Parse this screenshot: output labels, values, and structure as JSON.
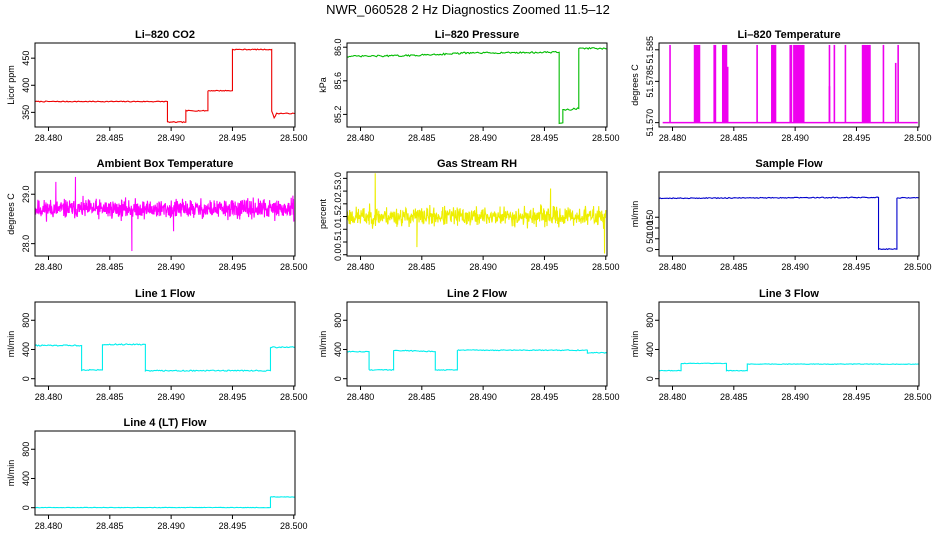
{
  "title": "NWR_060528  2 Hz Diagnostics Zoomed 11.5–12",
  "chart_data": [
    {
      "type": "line",
      "title": "Li–820 CO2",
      "ylabel": "Licor ppm",
      "color": "#ee0000",
      "xlim": [
        28.4789,
        28.5001
      ],
      "ylim": [
        323,
        478
      ],
      "xticks": [
        28.48,
        28.485,
        28.49,
        28.495,
        28.5
      ],
      "xtick_labels": [
        "28.480",
        "28.485",
        "28.490",
        "28.495",
        "28.500"
      ],
      "yticks": [
        350,
        400,
        450
      ],
      "ytick_labels": [
        "350",
        "400",
        "450"
      ],
      "noise": 0.8,
      "points": [
        [
          28.4789,
          370
        ],
        [
          28.4897,
          370
        ],
        [
          28.4897,
          332
        ],
        [
          28.4912,
          332
        ],
        [
          28.4912,
          353
        ],
        [
          28.493,
          353
        ],
        [
          28.493,
          390
        ],
        [
          28.495,
          390
        ],
        [
          28.495,
          466
        ],
        [
          28.4982,
          466
        ],
        [
          28.4982,
          352
        ],
        [
          28.4984,
          340
        ],
        [
          28.4986,
          348
        ],
        [
          28.5001,
          348
        ]
      ]
    },
    {
      "type": "line",
      "title": "Li–820 Pressure",
      "ylabel": "kPa",
      "color": "#00bb00",
      "xlim": [
        28.4789,
        28.5001
      ],
      "ylim": [
        85.05,
        86.05
      ],
      "xticks": [
        28.48,
        28.485,
        28.49,
        28.495,
        28.5
      ],
      "xtick_labels": [
        "28.480",
        "28.485",
        "28.490",
        "28.495",
        "28.500"
      ],
      "yticks": [
        85.2,
        85.6,
        86.0
      ],
      "ytick_labels": [
        "85.2",
        "85.6",
        "86.0"
      ],
      "noise": 0.01,
      "points": [
        [
          28.4789,
          85.89
        ],
        [
          28.484,
          85.9
        ],
        [
          28.4885,
          85.93
        ],
        [
          28.4962,
          85.94
        ],
        [
          28.4962,
          85.1
        ],
        [
          28.4965,
          85.1
        ],
        [
          28.4965,
          85.25
        ],
        [
          28.4978,
          85.27
        ],
        [
          28.4978,
          85.99
        ],
        [
          28.5001,
          85.98
        ]
      ]
    },
    {
      "type": "line",
      "title": "Li–820 Temperature",
      "ylabel": "degrees C",
      "color": "#ee00ee",
      "xlim": [
        28.4789,
        28.5001
      ],
      "ylim": [
        51.5691,
        51.5864
      ],
      "xticks": [
        28.48,
        28.485,
        28.49,
        28.495,
        28.5
      ],
      "xtick_labels": [
        "28.480",
        "28.485",
        "28.490",
        "28.495",
        "28.500"
      ],
      "yticks": [
        51.57,
        51.5785,
        51.585
      ],
      "ytick_labels": [
        "51.570",
        "51.5785",
        "51.585"
      ],
      "baseline": 51.57,
      "peak": 51.586,
      "spikes": [
        28.4798,
        28.4818,
        28.4819,
        28.482,
        28.4821,
        28.4822,
        28.4834,
        28.4835,
        28.4841,
        28.4842,
        28.4843,
        28.4844,
        28.4869,
        28.4881,
        28.4882,
        28.4883,
        28.4884,
        28.4896,
        28.4897,
        28.4899,
        28.49,
        28.4901,
        28.4902,
        28.4903,
        28.4904,
        28.4905,
        28.4906,
        28.4907,
        28.4928,
        28.4932,
        28.4941,
        28.4955,
        28.4956,
        28.4957,
        28.4958,
        28.4959,
        28.496,
        28.4961,
        28.4972,
        28.4984
      ],
      "partial_spikes": [
        [
          28.4845,
          51.5815
        ],
        [
          28.4928,
          51.5775
        ],
        [
          28.4982,
          51.5823
        ]
      ]
    },
    {
      "type": "line",
      "title": "Ambient Box Temperature",
      "ylabel": "degrees C",
      "color": "#ff00ff",
      "xlim": [
        28.4789,
        28.5001
      ],
      "ylim": [
        27.75,
        29.45
      ],
      "xticks": [
        28.48,
        28.485,
        28.49,
        28.495,
        28.5
      ],
      "xtick_labels": [
        "28.480",
        "28.485",
        "28.490",
        "28.495",
        "28.500"
      ],
      "yticks": [
        28.0,
        29.0
      ],
      "ytick_labels": [
        "28.0",
        "29.0"
      ],
      "noise_series": {
        "from": 28.4789,
        "to": 28.5,
        "n": 900,
        "mean": 28.7,
        "amp": 0.28,
        "seed": 11,
        "spikes": [
          [
            28.4868,
            27.85
          ],
          [
            28.4822,
            29.35
          ],
          [
            28.4806,
            29.25
          ],
          [
            28.4902,
            28.25
          ]
        ]
      }
    },
    {
      "type": "line",
      "title": "Gas Stream RH",
      "ylabel": "percent",
      "color": "#eeee00",
      "xlim": [
        28.4789,
        28.5001
      ],
      "ylim": [
        -0.05,
        3.25
      ],
      "xticks": [
        28.48,
        28.485,
        28.49,
        28.495,
        28.5
      ],
      "xtick_labels": [
        "28.480",
        "28.485",
        "28.490",
        "28.495",
        "28.500"
      ],
      "yticks": [
        0.0,
        0.5,
        1.0,
        1.5,
        2.0,
        2.5,
        3.0
      ],
      "ytick_labels": [
        "0.0",
        "0.5",
        "1.0",
        "1.5",
        "2.0",
        "2.5",
        "3.0"
      ],
      "noise_series": {
        "from": 28.4789,
        "to": 28.5,
        "n": 700,
        "mean": 1.5,
        "amp": 0.55,
        "seed": 23,
        "spikes": [
          [
            28.4812,
            3.2
          ],
          [
            28.4999,
            0.05
          ],
          [
            28.4846,
            0.3
          ],
          [
            28.4955,
            2.6
          ]
        ]
      }
    },
    {
      "type": "line",
      "title": "Sample Flow",
      "ylabel": "ml/min",
      "color": "#0000cc",
      "xlim": [
        28.4789,
        28.5001
      ],
      "ylim": [
        -30,
        360
      ],
      "xticks": [
        28.48,
        28.485,
        28.49,
        28.495,
        28.5
      ],
      "xtick_labels": [
        "28.480",
        "28.485",
        "28.490",
        "28.495",
        "28.500"
      ],
      "yticks": [
        0,
        50,
        100,
        150
      ],
      "ytick_labels": [
        "0",
        "50",
        "100",
        "150"
      ],
      "noise": 2,
      "points": [
        [
          28.4789,
          238
        ],
        [
          28.4968,
          242
        ],
        [
          28.4968,
          2
        ],
        [
          28.4983,
          2
        ],
        [
          28.4983,
          240
        ],
        [
          28.5001,
          240
        ]
      ]
    },
    {
      "type": "line",
      "title": "Line 1 Flow",
      "ylabel": "ml/min",
      "color": "#00eeee",
      "xlim": [
        28.4789,
        28.5001
      ],
      "ylim": [
        -100,
        1050
      ],
      "xticks": [
        28.48,
        28.485,
        28.49,
        28.495,
        28.5
      ],
      "xtick_labels": [
        "28.480",
        "28.485",
        "28.490",
        "28.495",
        "28.500"
      ],
      "yticks": [
        0,
        400,
        800
      ],
      "ytick_labels": [
        "0",
        "400",
        "800"
      ],
      "noise": 8,
      "points": [
        [
          28.4789,
          455
        ],
        [
          28.4827,
          455
        ],
        [
          28.4827,
          120
        ],
        [
          28.4844,
          120
        ],
        [
          28.4844,
          470
        ],
        [
          28.4879,
          470
        ],
        [
          28.4879,
          110
        ],
        [
          28.4981,
          110
        ],
        [
          28.4981,
          430
        ],
        [
          28.5001,
          430
        ]
      ]
    },
    {
      "type": "line",
      "title": "Line 2 Flow",
      "ylabel": "ml/min",
      "color": "#00eeee",
      "xlim": [
        28.4789,
        28.5001
      ],
      "ylim": [
        -100,
        1050
      ],
      "xticks": [
        28.48,
        28.485,
        28.49,
        28.495,
        28.5
      ],
      "xtick_labels": [
        "28.480",
        "28.485",
        "28.490",
        "28.495",
        "28.500"
      ],
      "yticks": [
        0,
        400,
        800
      ],
      "ytick_labels": [
        "0",
        "400",
        "800"
      ],
      "noise": 6,
      "points": [
        [
          28.4789,
          370
        ],
        [
          28.4807,
          370
        ],
        [
          28.4807,
          120
        ],
        [
          28.4827,
          120
        ],
        [
          28.4827,
          390
        ],
        [
          28.4861,
          370
        ],
        [
          28.4861,
          120
        ],
        [
          28.4879,
          120
        ],
        [
          28.4879,
          390
        ],
        [
          28.4985,
          390
        ],
        [
          28.4985,
          355
        ],
        [
          28.5001,
          355
        ]
      ]
    },
    {
      "type": "line",
      "title": "Line 3 Flow",
      "ylabel": "ml/min",
      "color": "#00eeee",
      "xlim": [
        28.4789,
        28.5001
      ],
      "ylim": [
        -100,
        1050
      ],
      "xticks": [
        28.48,
        28.485,
        28.49,
        28.495,
        28.5
      ],
      "xtick_labels": [
        "28.480",
        "28.485",
        "28.490",
        "28.495",
        "28.500"
      ],
      "yticks": [
        0,
        400,
        800
      ],
      "ytick_labels": [
        "0",
        "400",
        "800"
      ],
      "noise": 4,
      "points": [
        [
          28.4789,
          110
        ],
        [
          28.4807,
          110
        ],
        [
          28.4807,
          210
        ],
        [
          28.4844,
          210
        ],
        [
          28.4844,
          110
        ],
        [
          28.4861,
          110
        ],
        [
          28.4861,
          200
        ],
        [
          28.5001,
          200
        ]
      ]
    },
    {
      "type": "line",
      "title": "Line 4 (LT) Flow",
      "ylabel": "ml/min",
      "color": "#00eeee",
      "xlim": [
        28.4789,
        28.5001
      ],
      "ylim": [
        -100,
        1050
      ],
      "xticks": [
        28.48,
        28.485,
        28.49,
        28.495,
        28.5
      ],
      "xtick_labels": [
        "28.480",
        "28.485",
        "28.490",
        "28.495",
        "28.500"
      ],
      "yticks": [
        0,
        400,
        800
      ],
      "ytick_labels": [
        "0",
        "400",
        "800"
      ],
      "noise": 3,
      "points": [
        [
          28.4789,
          2
        ],
        [
          28.4981,
          2
        ],
        [
          28.4981,
          150
        ],
        [
          28.5001,
          145
        ]
      ]
    }
  ]
}
